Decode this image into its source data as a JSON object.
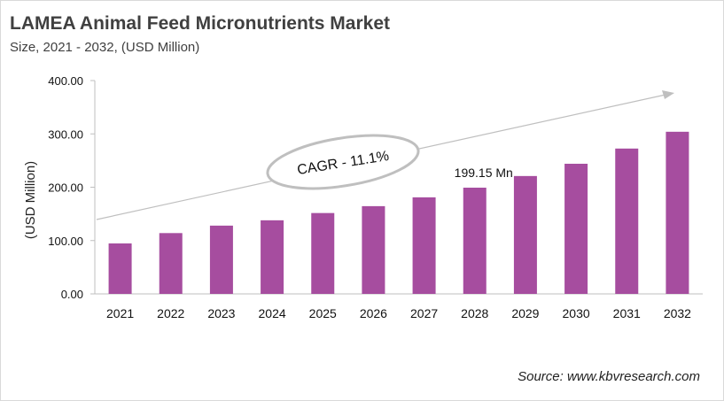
{
  "chart_data": {
    "type": "bar",
    "title": "LAMEA Animal Feed Micronutrients Market",
    "subtitle": "Size, 2021 - 2032, (USD Million)",
    "xlabel": "",
    "ylabel": "(USD Million)",
    "ylim": [
      0,
      400
    ],
    "yticks": [
      "0.00",
      "100.00",
      "200.00",
      "300.00",
      "400.00"
    ],
    "categories": [
      "2021",
      "2022",
      "2023",
      "2024",
      "2025",
      "2026",
      "2027",
      "2028",
      "2029",
      "2030",
      "2031",
      "2032"
    ],
    "values": [
      94.6,
      114,
      128,
      138,
      151.6,
      164.5,
      181,
      199.15,
      221,
      244,
      272.5,
      304
    ],
    "data_label": {
      "category": "2028",
      "text": "199.15 Mn"
    },
    "annotation": "CAGR - 11.1%",
    "bar_color": "#a64d9f",
    "grid": false,
    "legend": "none"
  },
  "source": "Source: www.kbvresearch.com"
}
